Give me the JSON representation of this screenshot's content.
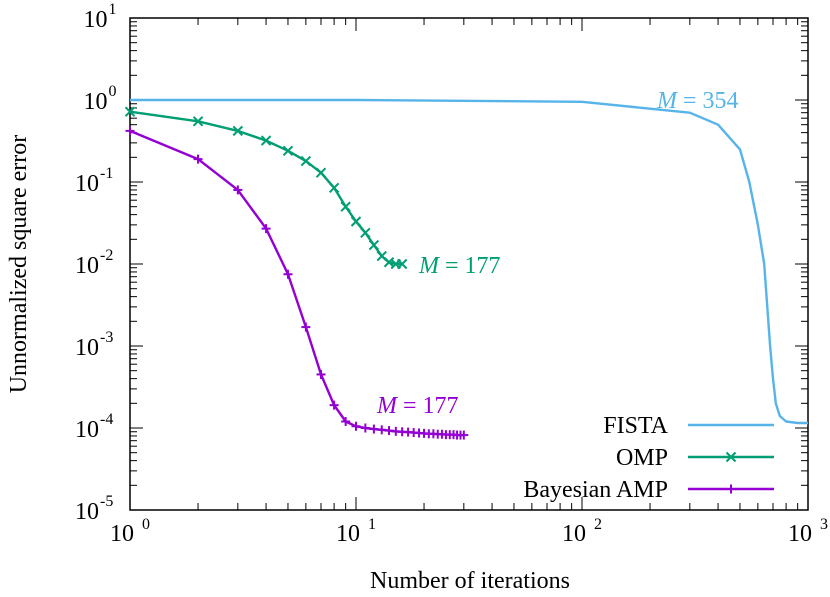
{
  "chart_data": {
    "type": "line",
    "xlabel": "Number of iterations",
    "ylabel": "Unnormalized square error",
    "xscale": "log",
    "yscale": "log",
    "xlim": [
      1,
      1000
    ],
    "ylim": [
      1e-05,
      10
    ],
    "grid": false,
    "legend_position": "bottom-right",
    "x_ticks": [
      {
        "base": "10",
        "exp": "0"
      },
      {
        "base": "10",
        "exp": "1"
      },
      {
        "base": "10",
        "exp": "2"
      },
      {
        "base": "10",
        "exp": "3"
      }
    ],
    "y_ticks": [
      {
        "base": "10",
        "exp": "1"
      },
      {
        "base": "10",
        "exp": "0"
      },
      {
        "base": "10",
        "exp": "-1"
      },
      {
        "base": "10",
        "exp": "-2"
      },
      {
        "base": "10",
        "exp": "-3"
      },
      {
        "base": "10",
        "exp": "-4"
      },
      {
        "base": "10",
        "exp": "-5"
      }
    ],
    "series": [
      {
        "name": "FISTA",
        "color": "#56B4E9",
        "marker": "none",
        "x": [
          1,
          10,
          100,
          300,
          400,
          500,
          550,
          600,
          640,
          680,
          700,
          720,
          750,
          800,
          900,
          1000
        ],
        "y": [
          1.0,
          1.0,
          0.95,
          0.7,
          0.5,
          0.25,
          0.1,
          0.03,
          0.01,
          0.001,
          0.0004,
          0.0002,
          0.00014,
          0.00012,
          0.000115,
          0.000115
        ]
      },
      {
        "name": "OMP",
        "color": "#009E73",
        "marker": "x",
        "x": [
          1,
          2,
          3,
          4,
          5,
          6,
          7,
          8,
          9,
          10,
          11,
          12,
          13,
          14,
          15,
          16
        ],
        "y": [
          0.72,
          0.55,
          0.42,
          0.32,
          0.24,
          0.18,
          0.13,
          0.085,
          0.05,
          0.033,
          0.024,
          0.017,
          0.0125,
          0.0105,
          0.01,
          0.01
        ]
      },
      {
        "name": "Bayesian AMP",
        "color": "#9400D3",
        "marker": "+",
        "x": [
          1,
          2,
          3,
          4,
          5,
          6,
          7,
          8,
          9,
          10,
          11,
          12,
          13,
          14,
          15,
          16,
          17,
          18,
          19,
          20,
          21,
          22,
          23,
          24,
          25,
          26,
          27,
          28,
          29,
          30
        ],
        "y": [
          0.42,
          0.19,
          0.08,
          0.027,
          0.0075,
          0.0017,
          0.00045,
          0.00019,
          0.00012,
          0.000105,
          0.0001,
          9.7e-05,
          9.5e-05,
          9.3e-05,
          9.1e-05,
          9e-05,
          8.9e-05,
          8.8e-05,
          8.7e-05,
          8.6e-05,
          8.5e-05,
          8.5e-05,
          8.4e-05,
          8.4e-05,
          8.3e-05,
          8.3e-05,
          8.3e-05,
          8.2e-05,
          8.2e-05,
          8.2e-05
        ]
      }
    ],
    "annotations": [
      {
        "target": "FISTA",
        "prefix": "M",
        "text": " = 354",
        "color": "#56B4E9"
      },
      {
        "target": "OMP",
        "prefix": "M",
        "text": " = 177",
        "color": "#009E73"
      },
      {
        "target": "Bayesian AMP",
        "prefix": "M",
        "text": " = 177",
        "color": "#9400D3"
      }
    ]
  }
}
